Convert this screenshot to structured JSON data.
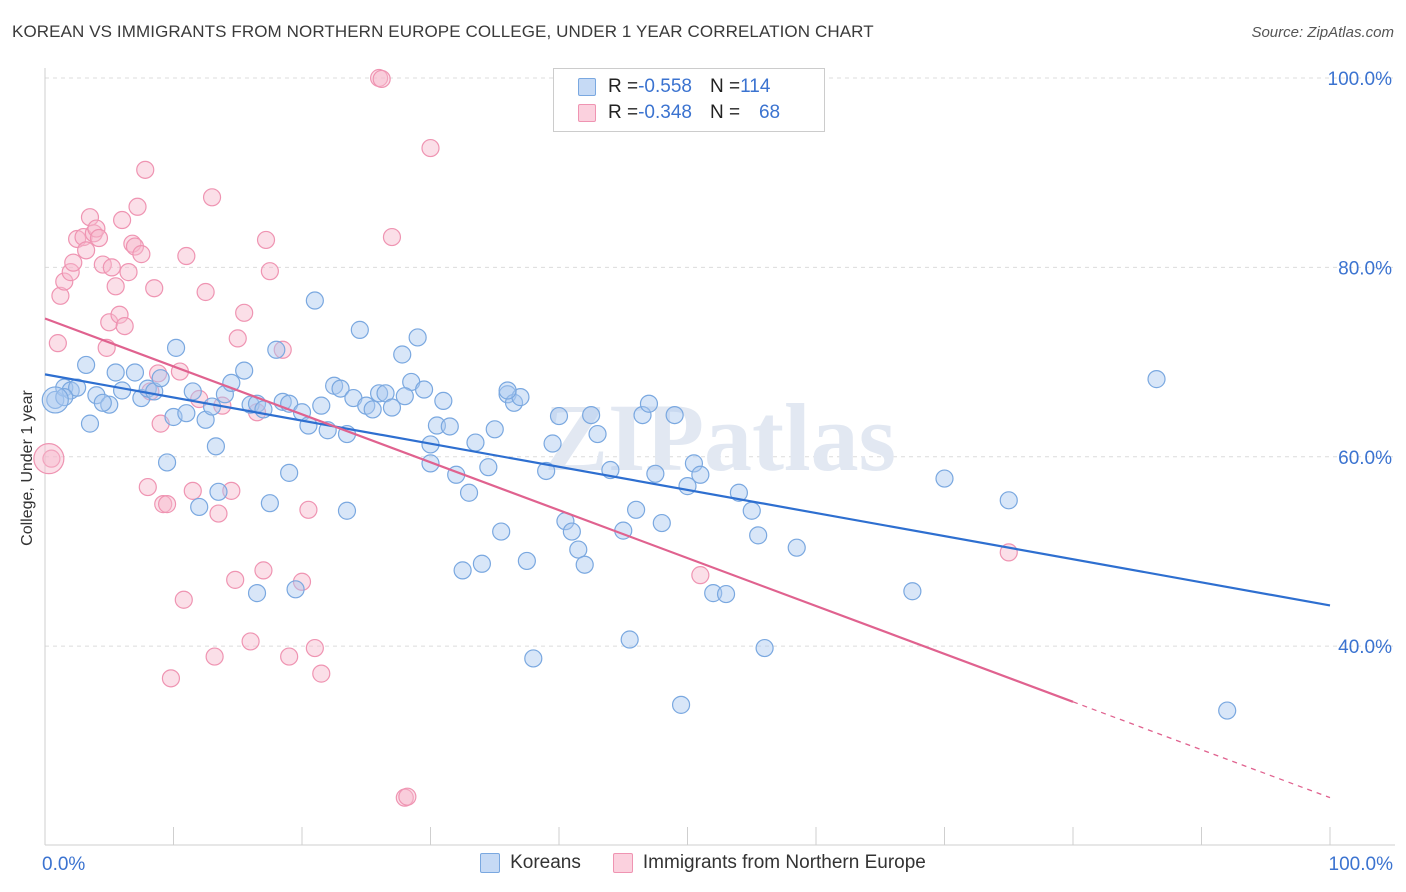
{
  "title": "KOREAN VS IMMIGRANTS FROM NORTHERN EUROPE COLLEGE, UNDER 1 YEAR CORRELATION CHART",
  "source": "Source: ZipAtlas.com",
  "watermark": "ZIPatlas",
  "legend": {
    "rows": [
      {
        "r_label": "R = ",
        "r_value": "-0.558",
        "n_label": "N = ",
        "n_value": "114"
      },
      {
        "r_label": "R = ",
        "r_value": "-0.348",
        "n_label": "N = ",
        "n_value": "68"
      }
    ]
  },
  "colors": {
    "blue_fill": "#a9c8f0",
    "blue_stroke": "#7aa8e0",
    "blue_line": "#2e6fd0",
    "pink_fill": "#f7b8cb",
    "pink_stroke": "#ef94b2",
    "pink_line": "#e0628f",
    "axis_text": "#3b73d0",
    "grid": "#dcdcdc"
  },
  "chart_data": {
    "type": "scatter",
    "title": "KOREAN VS IMMIGRANTS FROM NORTHERN EUROPE COLLEGE, UNDER 1 YEAR CORRELATION CHART",
    "xlabel": "",
    "ylabel": "College, Under 1 year",
    "x_tick_labels": [
      "0.0%",
      "100.0%"
    ],
    "y_tick_labels": [
      "40.0%",
      "60.0%",
      "80.0%",
      "100.0%"
    ],
    "y_ticks": [
      40,
      60,
      80,
      100
    ],
    "xlim": [
      0,
      100
    ],
    "ylim": [
      19,
      100
    ],
    "grid": true,
    "legend_position": "bottom",
    "series": [
      {
        "name": "Koreans",
        "color": "#a9c8f0",
        "R": -0.558,
        "N": 114,
        "trend": {
          "x": [
            0,
            100
          ],
          "y": [
            68.7,
            44.3
          ],
          "dashed_from": null
        },
        "points": [
          [
            0.8,
            66.0
          ],
          [
            1.5,
            67.3
          ],
          [
            2.0,
            67.0
          ],
          [
            2.5,
            67.3
          ],
          [
            4.0,
            66.5
          ],
          [
            3.5,
            63.5
          ],
          [
            5.0,
            65.5
          ],
          [
            4.5,
            65.7
          ],
          [
            6.0,
            67.0
          ],
          [
            5.5,
            68.9
          ],
          [
            7.0,
            68.9
          ],
          [
            7.5,
            66.2
          ],
          [
            8.0,
            67.2
          ],
          [
            8.5,
            66.9
          ],
          [
            9.0,
            68.3
          ],
          [
            3.2,
            69.7
          ],
          [
            9.5,
            59.4
          ],
          [
            10.0,
            64.2
          ],
          [
            10.2,
            71.5
          ],
          [
            11.0,
            64.6
          ],
          [
            11.5,
            66.9
          ],
          [
            12.5,
            63.9
          ],
          [
            13.0,
            65.3
          ],
          [
            13.3,
            61.1
          ],
          [
            14.0,
            66.6
          ],
          [
            14.5,
            67.8
          ],
          [
            15.5,
            69.1
          ],
          [
            16.0,
            65.5
          ],
          [
            16.5,
            65.6
          ],
          [
            17.0,
            65.0
          ],
          [
            17.5,
            55.1
          ],
          [
            18.0,
            71.3
          ],
          [
            18.5,
            65.8
          ],
          [
            19.0,
            65.6
          ],
          [
            19.5,
            46.0
          ],
          [
            20.0,
            64.7
          ],
          [
            20.5,
            63.3
          ],
          [
            21.0,
            76.5
          ],
          [
            21.5,
            65.4
          ],
          [
            22.0,
            62.8
          ],
          [
            22.5,
            67.5
          ],
          [
            23.0,
            67.2
          ],
          [
            23.5,
            62.4
          ],
          [
            24.0,
            66.2
          ],
          [
            24.5,
            73.4
          ],
          [
            25.0,
            65.4
          ],
          [
            25.5,
            65.0
          ],
          [
            26.0,
            66.7
          ],
          [
            26.5,
            66.7
          ],
          [
            27.0,
            65.2
          ],
          [
            27.8,
            70.8
          ],
          [
            28.5,
            67.9
          ],
          [
            29.0,
            72.6
          ],
          [
            29.5,
            67.1
          ],
          [
            30.0,
            61.3
          ],
          [
            30.5,
            63.3
          ],
          [
            31.0,
            65.9
          ],
          [
            31.5,
            63.2
          ],
          [
            32.0,
            58.1
          ],
          [
            32.5,
            48.0
          ],
          [
            33.0,
            56.2
          ],
          [
            33.5,
            61.5
          ],
          [
            34.0,
            48.7
          ],
          [
            34.5,
            58.9
          ],
          [
            35.0,
            62.9
          ],
          [
            35.5,
            52.1
          ],
          [
            36.0,
            66.6
          ],
          [
            36.5,
            65.7
          ],
          [
            37.0,
            66.3
          ],
          [
            37.5,
            49.0
          ],
          [
            38.0,
            38.7
          ],
          [
            39.0,
            58.5
          ],
          [
            39.5,
            61.4
          ],
          [
            40.0,
            64.3
          ],
          [
            40.5,
            53.2
          ],
          [
            41.0,
            52.1
          ],
          [
            41.5,
            50.2
          ],
          [
            42.0,
            48.6
          ],
          [
            42.5,
            64.4
          ],
          [
            43.0,
            62.4
          ],
          [
            44.0,
            58.6
          ],
          [
            45.0,
            52.2
          ],
          [
            45.5,
            40.7
          ],
          [
            46.0,
            54.4
          ],
          [
            46.5,
            64.4
          ],
          [
            47.0,
            65.6
          ],
          [
            47.5,
            58.2
          ],
          [
            48.0,
            53.0
          ],
          [
            49.0,
            64.4
          ],
          [
            49.5,
            33.8
          ],
          [
            50.0,
            56.9
          ],
          [
            50.5,
            59.3
          ],
          [
            51.0,
            58.1
          ],
          [
            52.0,
            45.6
          ],
          [
            53.0,
            45.5
          ],
          [
            54.0,
            56.2
          ],
          [
            55.0,
            54.3
          ],
          [
            55.5,
            51.7
          ],
          [
            56.0,
            39.8
          ],
          [
            58.5,
            50.4
          ],
          [
            67.5,
            45.8
          ],
          [
            70.0,
            57.7
          ],
          [
            75.0,
            55.4
          ],
          [
            86.5,
            68.2
          ],
          [
            92.0,
            33.2
          ],
          [
            19.0,
            58.3
          ],
          [
            12.0,
            54.7
          ],
          [
            16.5,
            45.6
          ],
          [
            23.5,
            54.3
          ],
          [
            30.0,
            59.3
          ],
          [
            13.5,
            56.3
          ],
          [
            28.0,
            66.4
          ],
          [
            36.0,
            67.0
          ],
          [
            1.5,
            66.3
          ]
        ]
      },
      {
        "name": "Immigrants from Northern Europe",
        "color": "#f7b8cb",
        "R": -0.348,
        "N": 68,
        "trend": {
          "x": [
            0,
            100
          ],
          "y": [
            74.6,
            24.0
          ],
          "dashed_from": 80
        },
        "points": [
          [
            0.5,
            59.8
          ],
          [
            1.0,
            72.0
          ],
          [
            1.2,
            77.0
          ],
          [
            1.5,
            78.5
          ],
          [
            2.0,
            79.5
          ],
          [
            2.2,
            80.5
          ],
          [
            2.5,
            83.0
          ],
          [
            3.0,
            83.2
          ],
          [
            3.2,
            81.8
          ],
          [
            3.5,
            85.3
          ],
          [
            3.8,
            83.6
          ],
          [
            4.0,
            84.1
          ],
          [
            4.2,
            83.1
          ],
          [
            4.5,
            80.3
          ],
          [
            4.8,
            71.5
          ],
          [
            5.0,
            74.2
          ],
          [
            5.2,
            80.0
          ],
          [
            5.5,
            78.0
          ],
          [
            5.8,
            75.0
          ],
          [
            6.0,
            85.0
          ],
          [
            6.2,
            73.8
          ],
          [
            6.5,
            79.5
          ],
          [
            6.8,
            82.5
          ],
          [
            7.0,
            82.2
          ],
          [
            7.2,
            86.4
          ],
          [
            7.5,
            81.4
          ],
          [
            7.8,
            90.3
          ],
          [
            8.0,
            56.8
          ],
          [
            8.2,
            66.9
          ],
          [
            8.5,
            77.8
          ],
          [
            8.8,
            68.8
          ],
          [
            9.0,
            63.5
          ],
          [
            9.2,
            55.0
          ],
          [
            9.5,
            55.0
          ],
          [
            9.8,
            36.6
          ],
          [
            10.5,
            69.0
          ],
          [
            10.8,
            44.9
          ],
          [
            11.0,
            81.2
          ],
          [
            11.5,
            56.4
          ],
          [
            12.0,
            66.1
          ],
          [
            12.5,
            77.4
          ],
          [
            13.0,
            87.4
          ],
          [
            13.2,
            38.9
          ],
          [
            13.5,
            54.0
          ],
          [
            13.8,
            65.4
          ],
          [
            14.5,
            56.4
          ],
          [
            14.8,
            47.0
          ],
          [
            15.0,
            72.5
          ],
          [
            15.5,
            75.2
          ],
          [
            16.0,
            40.5
          ],
          [
            16.5,
            64.7
          ],
          [
            17.0,
            48.0
          ],
          [
            17.2,
            82.9
          ],
          [
            17.5,
            79.6
          ],
          [
            18.5,
            71.3
          ],
          [
            19.0,
            38.9
          ],
          [
            20.0,
            46.8
          ],
          [
            20.5,
            54.4
          ],
          [
            21.0,
            39.8
          ],
          [
            21.5,
            37.1
          ],
          [
            26.0,
            100.0
          ],
          [
            27.0,
            83.2
          ],
          [
            28.0,
            24.0
          ],
          [
            30.0,
            92.6
          ],
          [
            51.0,
            47.5
          ],
          [
            75.0,
            49.9
          ],
          [
            28.2,
            24.1
          ],
          [
            26.2,
            99.9
          ]
        ]
      }
    ]
  }
}
